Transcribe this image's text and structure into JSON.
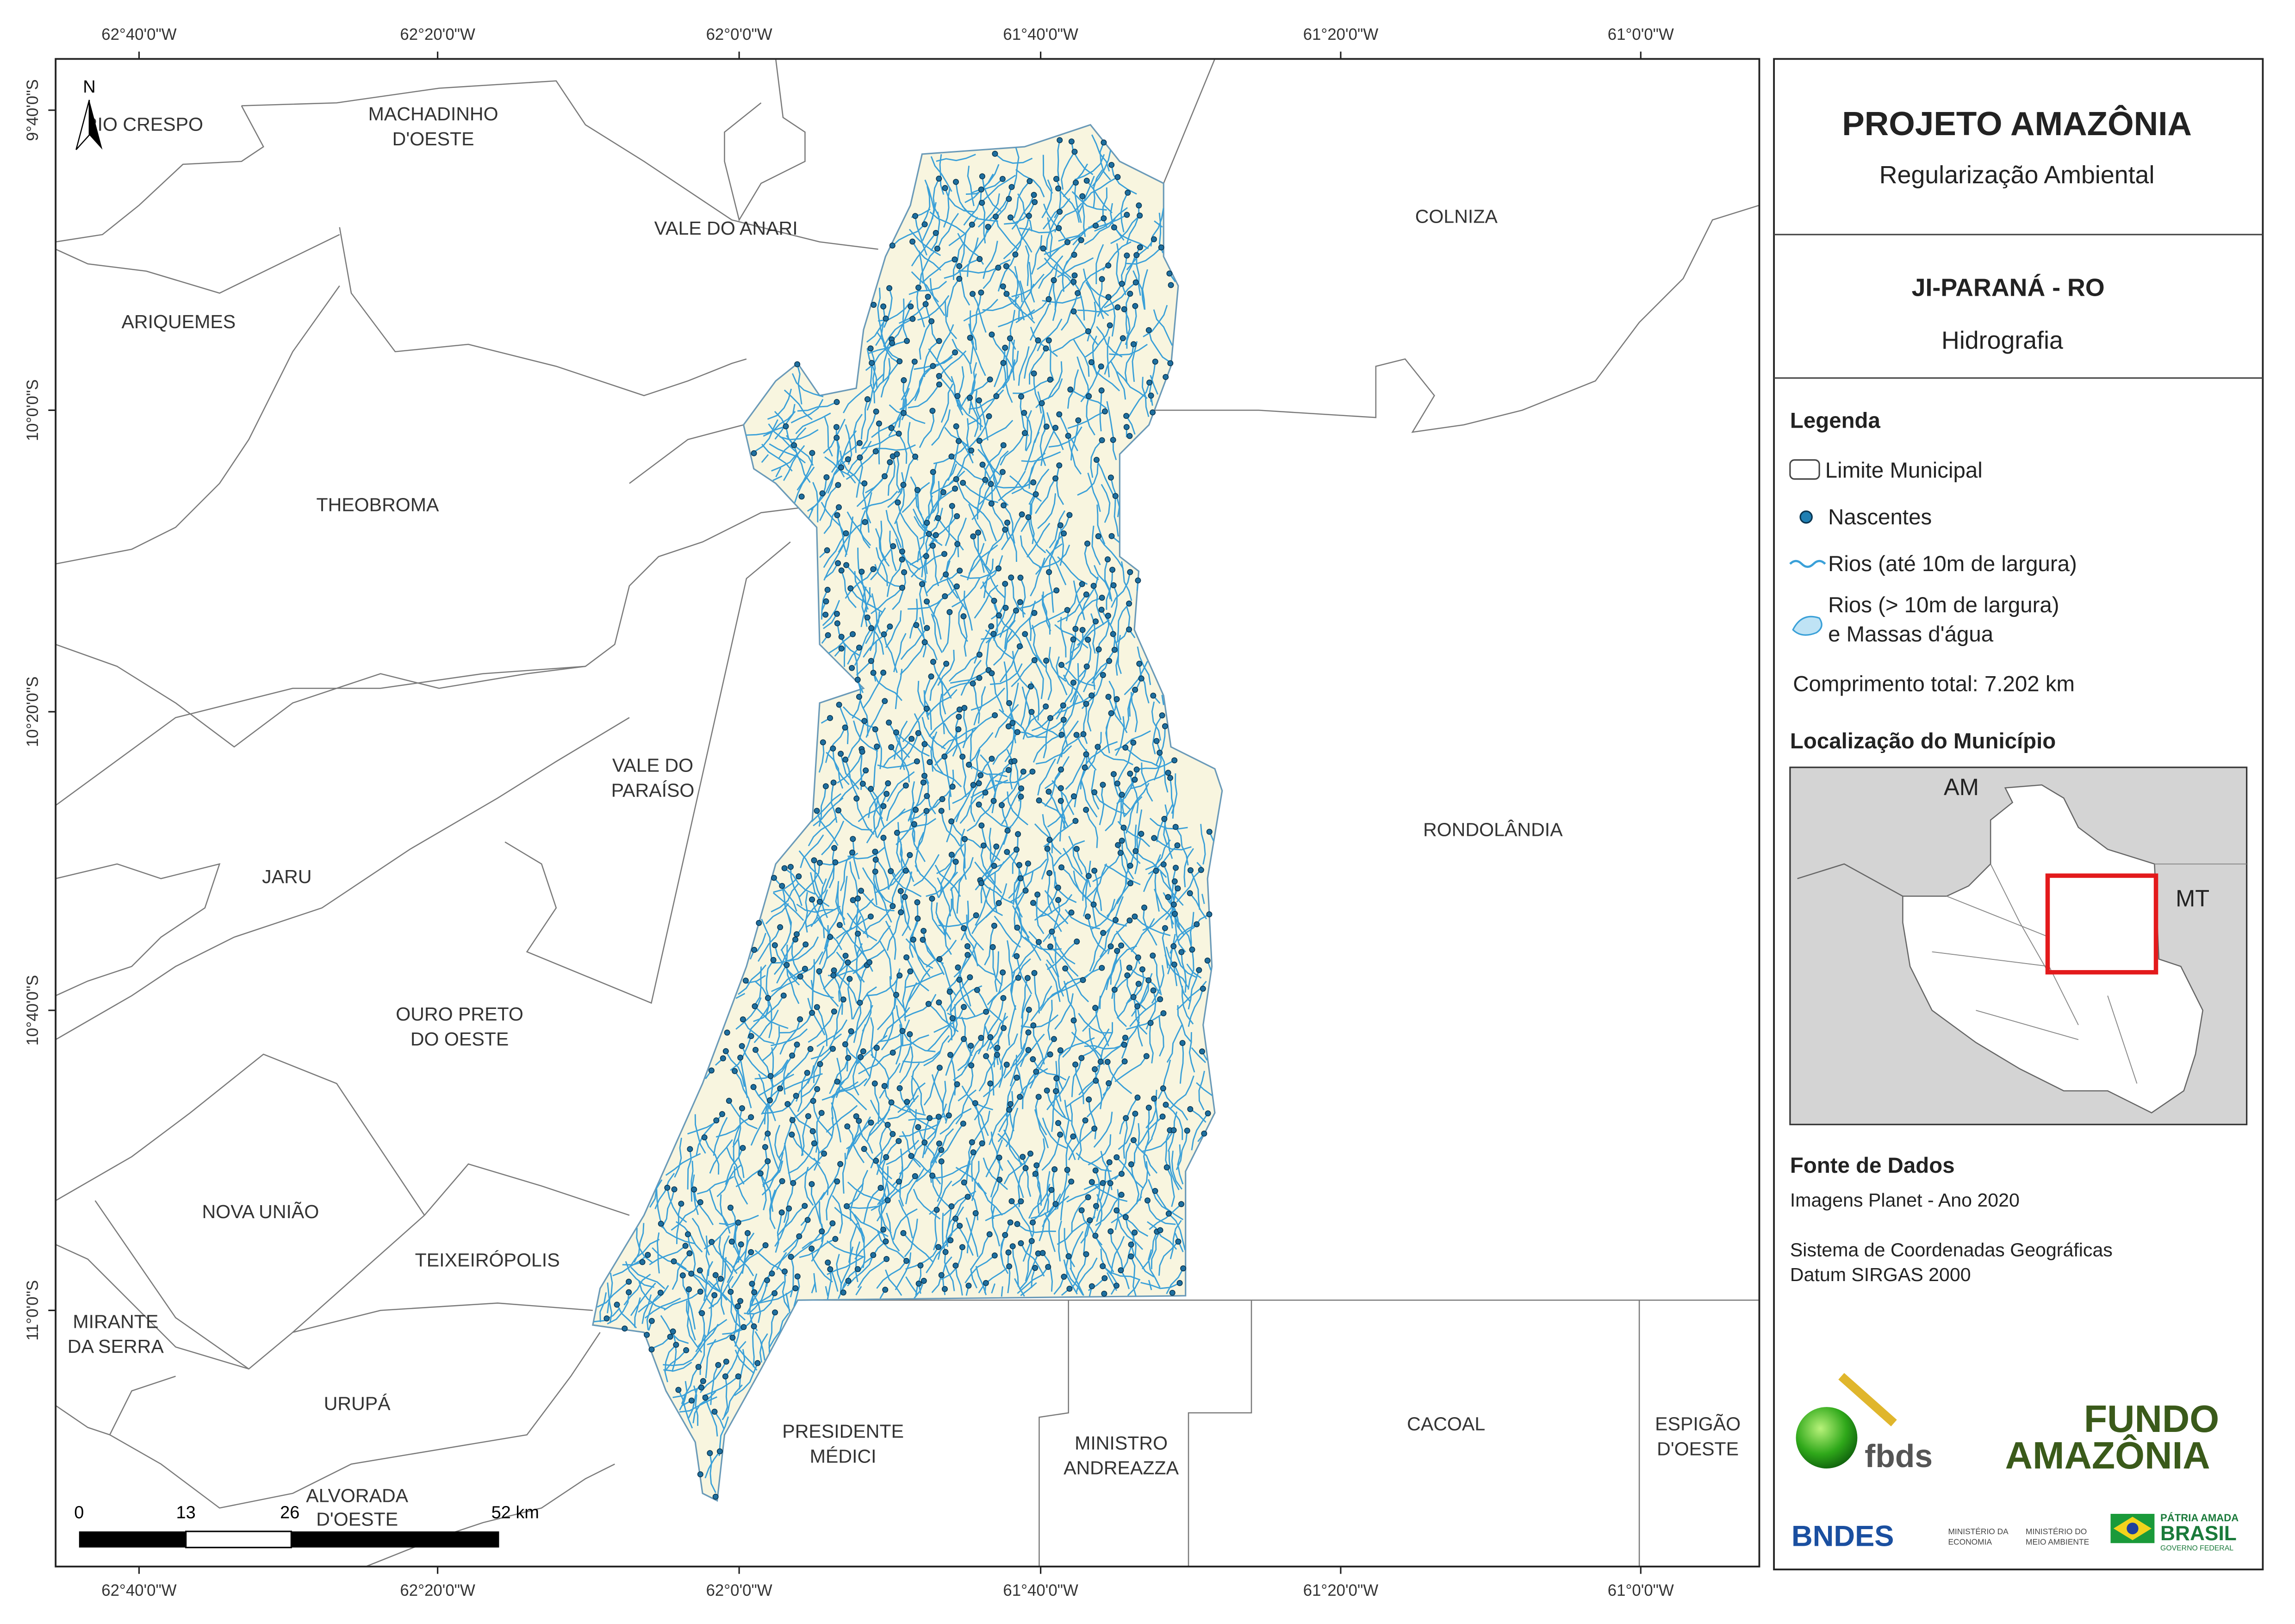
{
  "map": {
    "grid_labels": {
      "top": [
        "62°40'0\"W",
        "62°20'0\"W",
        "62°0'0\"W",
        "61°40'0\"W",
        "61°20'0\"W",
        "61°0'0\"W"
      ],
      "bottom": [
        "62°40'0\"W",
        "62°20'0\"W",
        "62°0'0\"W",
        "61°40'0\"W",
        "61°20'0\"W",
        "61°0'0\"W"
      ],
      "left": [
        "9°40'0\"S",
        "10°0'0\"S",
        "10°20'0\"S",
        "10°40'0\"S",
        "11°0'0\"S"
      ]
    },
    "north": "N",
    "municipalities": [
      [
        "RIO CRESPO"
      ],
      [
        "MACHADINHO",
        "D'OESTE"
      ],
      [
        "VALE DO ANARI"
      ],
      [
        "COLNIZA"
      ],
      [
        "ARIQUEMES"
      ],
      [
        "THEOBROMA"
      ],
      [
        "VALE DO",
        "PARAÍSO"
      ],
      [
        "RONDOLÂNDIA"
      ],
      [
        "JARU"
      ],
      [
        "OURO PRETO",
        "DO OESTE"
      ],
      [
        "NOVA UNIÃO"
      ],
      [
        "TEIXEIRÓPOLIS"
      ],
      [
        "MIRANTE",
        "DA SERRA"
      ],
      [
        "URUPÁ"
      ],
      [
        "ALVORADA",
        "D'OESTE"
      ],
      [
        "PRESIDENTE",
        "MÉDICI"
      ],
      [
        "MINISTRO",
        "ANDREAZZA"
      ],
      [
        "CACOAL"
      ],
      [
        "ESPIGÃO",
        "D'OESTE"
      ]
    ],
    "scale_bar": [
      "0",
      "13",
      "26",
      "52 km"
    ]
  },
  "panel": {
    "title": "PROJETO AMAZÔNIA",
    "subtitle": "Regularização Ambiental",
    "place": "JI-PARANÁ - RO",
    "theme": "Hidrografia",
    "legend": {
      "title": "Legenda",
      "items": [
        "Limite Municipal",
        "Nascentes",
        "Rios (até 10m de largura)",
        "Rios (> 10m de largura)",
        "e Massas d'água"
      ],
      "total": "Comprimento total: 7.202 km"
    },
    "location": {
      "title": "Localização do Município",
      "labels": [
        "AM",
        "MT"
      ]
    },
    "sources": {
      "title": "Fonte de Dados",
      "lines": [
        "Imagens Planet - Ano 2020",
        "Sistema de Coordenadas Geográficas",
        "Datum SIRGAS 2000"
      ]
    },
    "logos": [
      "fbds",
      "FUNDO",
      "AMAZÔNIA",
      "BNDES",
      "MINISTÉRIO DA",
      "ECONOMIA",
      "MINISTÉRIO DO",
      "MEIO AMBIENTE",
      "PÁTRIA AMADA",
      "BRASIL",
      "GOVERNO FEDERAL"
    ]
  }
}
